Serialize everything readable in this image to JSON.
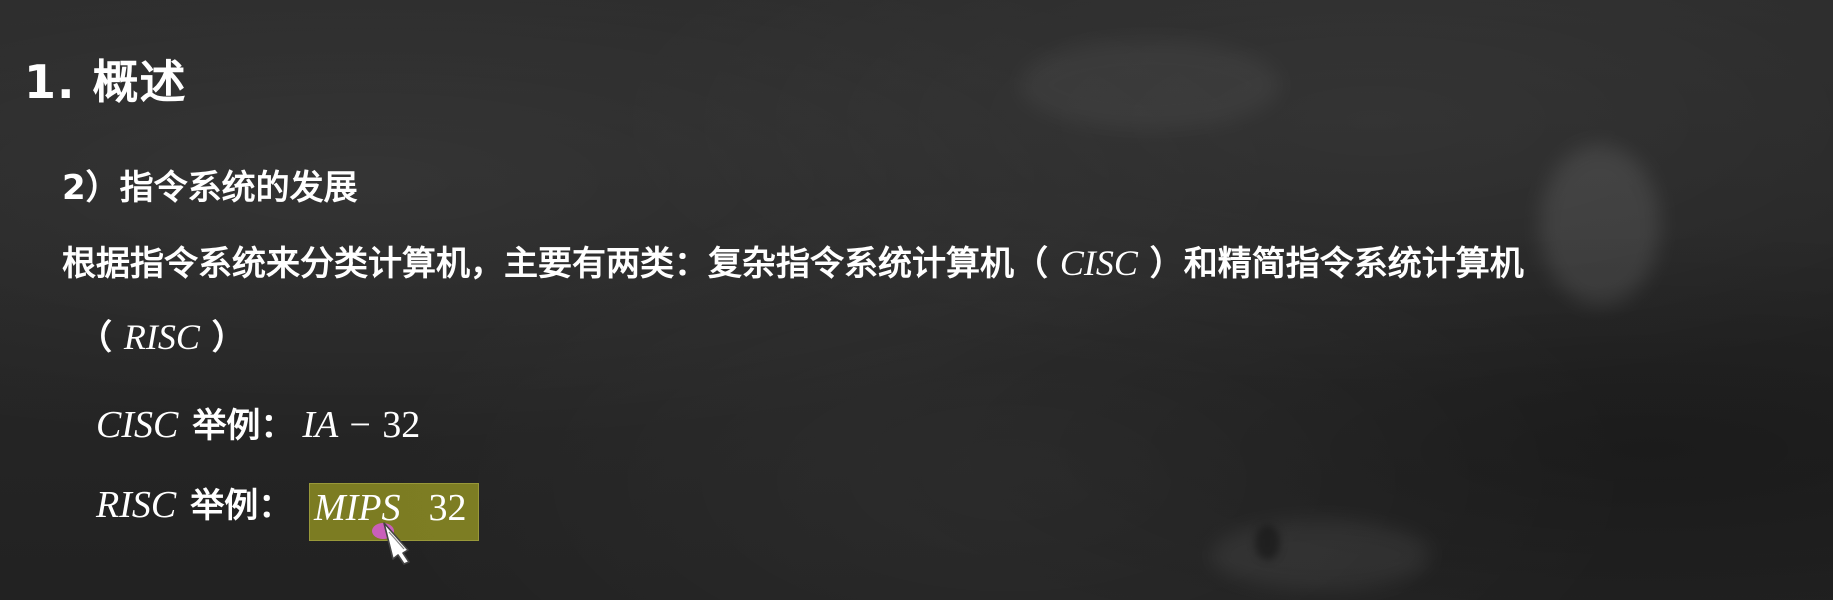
{
  "slide": {
    "title": "1. 概述",
    "subtitle": "2）指令系统的发展",
    "intro_line1_prefix": "根据指令系统来分类计算机，主要有两类：复杂指令系统计算机（",
    "intro_line1_cisc": "CISC",
    "intro_line1_mid": "）和精简指令系统计算机",
    "intro_line2_open": "（",
    "intro_line2_risc": "RISC",
    "intro_line2_close": "）",
    "examples": [
      {
        "name": "CISC",
        "label": "举例：",
        "value_prefix": "IA − ",
        "value_num": "32"
      },
      {
        "name": "RISC",
        "label": "举例：",
        "value_text": "MIPS",
        "value_num": "32"
      }
    ]
  }
}
